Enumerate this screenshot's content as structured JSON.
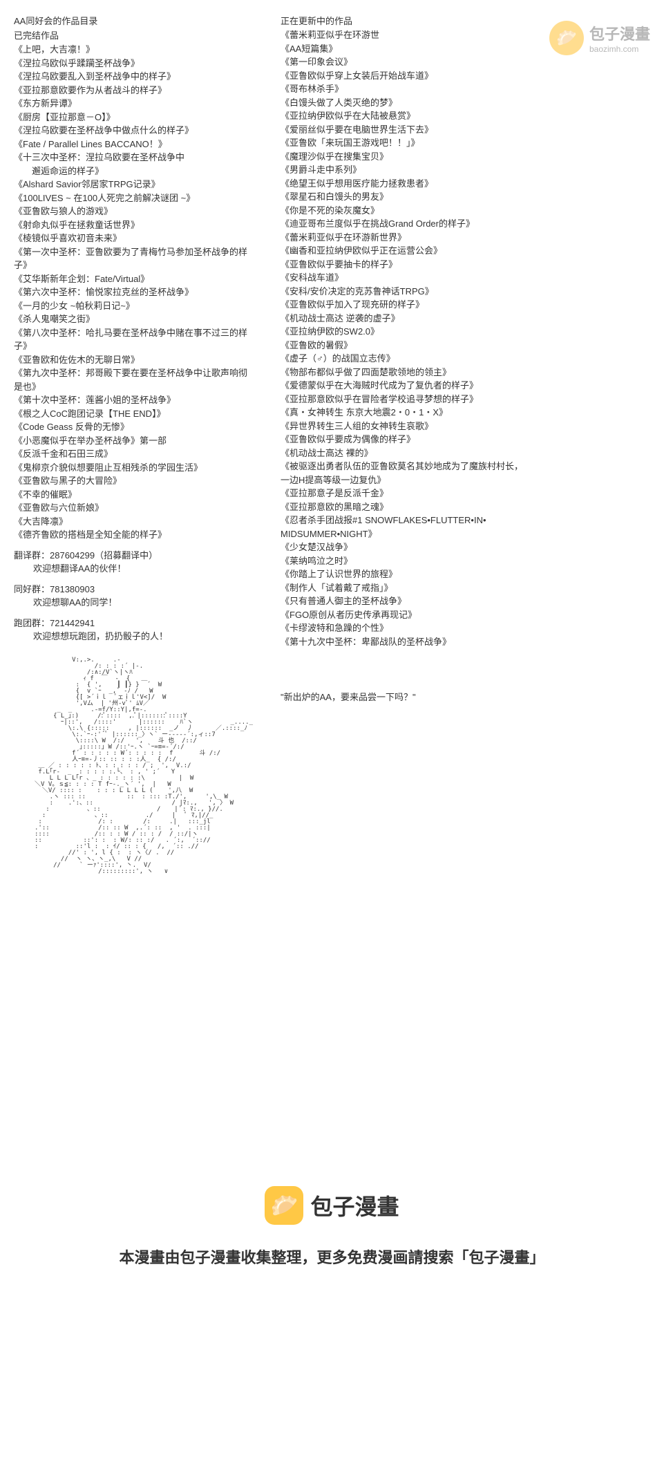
{
  "watermark": {
    "title": "包子漫畫",
    "url": "baozimh.com",
    "icon": "🥟"
  },
  "leftColumn": {
    "header": "AA同好会的作品目录",
    "completedTitle": "已完结作品",
    "completedWorks": [
      "《上吧，大吉凛！》",
      "《涅拉乌欧似乎蹂躏圣杯战争》",
      "《涅拉乌欧要乱入到圣杯战争中的样子》",
      "《亚拉那意欧要作为从者战斗的样子》",
      "《东方新异谭》",
      "《厨房【亚拉那意－O】》",
      "《涅拉乌欧要在圣杯战争中做点什么的样子》",
      "《Fate / Parallel Lines BACCANO！》",
      "《十三次中圣杯：涅拉乌欧要在圣杯战争中",
      "　　邂逅命运的样子》",
      "《Alshard Savior邻居家TRPG记录》",
      "《100LIVES ~ 在100人死完之前解决谜团 ~》",
      "《亚鲁欧与狼人的游戏》",
      "《射命丸似乎在拯救童话世界》",
      "《棱镜似乎喜欢初音未来》",
      "《第一次中圣杯：亚鲁欧要为了青梅竹马参加圣杯战争的样子》",
      "《艾华斯新年企划：Fate/Virtual》",
      "《第六次中圣杯：愉悦家拉克丝的圣杯战争》",
      "《一月的少女 ~帕秋莉日记~》",
      "《杀人鬼嘲笑之街》",
      "《第八次中圣杯：哈扎马要在圣杯战争中赌在事不过三的样子》",
      "《亚鲁欧和佐佐木的无聊日常》",
      "《第九次中圣杯：邦哥殿下要在要在圣杯战争中让歌声响彻是也》",
      "《第十次中圣杯：莲酱小姐的圣杯战争》",
      "《根之人CoC跑团记录【THE END】》",
      "《Code Geass 反骨的无惨》",
      "《小恶魔似乎在举办圣杯战争》第一部",
      "《反派千金和石田三成》",
      "《鬼柳京介貌似想要阻止互相残杀的学园生活》",
      "《亚鲁欧与黑子的大冒险》",
      "《不幸的催眠》",
      "《亚鲁欧与六位新娘》",
      "《大吉降凛》",
      "《德齐鲁欧的搭档是全知全能的样子》"
    ],
    "groups": [
      {
        "label": "翻译群：",
        "number": "287604299（招募翻译中）",
        "note": "欢迎想翻译AA的伙伴！"
      },
      {
        "label": "同好群：",
        "number": "781380903",
        "note": "欢迎想聊AA的同学！"
      },
      {
        "label": "跑团群：",
        "number": "721442941",
        "note": "欢迎想想玩跑团，扔扔骰子的人！"
      }
    ]
  },
  "rightColumn": {
    "updatingTitle": "正在更新中的作品",
    "updatingWorks": [
      "《蕾米莉亚似乎在环游世",
      "《AA短篇集》",
      "《第一印象会议》",
      "《亚鲁欧似乎穿上女装后开始战车道》",
      "《哥布林杀手》",
      "《白馒头做了人类灭绝的梦》",
      "《亚拉纳伊欧似乎在大陆被悬赏》",
      "《爱丽丝似乎要在电脑世界生活下去》",
      "《亚鲁欧「来玩国王游戏吧！！」》",
      "《魔理沙似乎在搜集宝贝》",
      "《男爵斗走中系列》",
      "《绝望王似乎想用医疗能力拯救患者》",
      "《翠星石和白馒头的男友》",
      "《你是不死的染灰魔女》",
      "《迪亚哥布兰度似乎在挑战Grand Order的样子》",
      "《蕾米莉亚似乎在环游新世界》",
      "《幽香和亚拉纳伊欧似乎正在运营公会》",
      "《亚鲁欧似乎要抽卡的样子》",
      "《安科战车道》",
      "《安科/安价决定的克苏鲁神话TRPG》",
      "《亚鲁欧似乎加入了现充研的样子》",
      "《机动战士高达 逆袭的虚子》",
      "《亚拉纳伊欧的SW2.0》",
      "《亚鲁欧的暑假》",
      "《虚子（♂）的战国立志传》",
      "《物部布都似乎做了四面楚歌领地的领主》",
      "《爱德蒙似乎在大海贼时代成为了复仇者的样子》",
      "《亚拉那意欧似乎在冒险者学校追寻梦想的样子》",
      "《真・女神转生 东京大地震2・0・1・X》",
      "《异世界转生三人组的女神转生哀歌》",
      "《亚鲁欧似乎要成为偶像的样子》",
      "《机动战士高达 裸的》",
      "《被驱逐出勇者队伍的亚鲁欧莫名其妙地成为了魔族村村长，",
      "一边H提高等级一边复仇》",
      "《亚拉那意子是反派千金》",
      "《亚拉那意欧的黑暗之魂》",
      "《忍者杀手团战报#1 SNOWFLAKES•FLUTTER•IN•",
      "MIDSUMMER•NIGHT》",
      "《少女楚汉战争》",
      "《莱纳鸣泣之时》",
      "《你踏上了认识世界的旅程》",
      "《制作人「试着戴了戒指」》",
      "《只有普通人御主的圣杯战争》",
      "《FGO原创从者历史传承再现记》",
      "《卡缪波特和急躁的个性》",
      "《第十九次中圣杯：卑鄙战队的圣杯战争》"
    ],
    "quote": "\"新出炉的AA，要来品尝一下吗？\""
  },
  "footer": {
    "icon": "🥟",
    "brand": "包子漫畫",
    "text": "本漫畫由包子漫畫收集整理，更多免费漫画請搜索「包子漫畫」"
  },
  "asciiArt": "          V:,.>.     .-\n                /: : : :´ |-.\n              /:∧:/V`ヽ|ヽﾊ\n             ｨ f  ￣  -  {   ＿\n           :  { ',    ┃ ┃} }  ´  W\n           {  v `ｰ  _,` -ﾉ /   W\n           {[ >´ｉｌ  ﾟェｉｌ'V<]/  W\n           ',Vム  | '州-vﾟ' ﾑV／\n      _  _     .-=f/Y::Y|,f=-.\n     { L_｣:)     /:ﾟ::::  ,.ﾟ|:::::::ﾟ::::Y\n       ｰ|::',   /::::'      |::::::    ﾊ`ヽ          _...._\n         \\:.\\ {:::::     , |::::::  _ノ  丿      ／.::::_ﾉ\n          \\:.`ｰ-:'´ﾟ |::::::_〉ヽ` ー-----´:,ィ::7\n           \\::::\\ W  /:/   ',    斗 也  /::/\n            ｣:::::｣ W /::'ｰ.ヽ `ｰ=≡=-´/:/\n          f´ : : : : : W´: : : : :  f       斗 /:/\n          人ｰ≡=-丿:: :: : : :人_  { /:/\n ＿ ／ : : : : : ﾄ、: : : : : / ;  ',  V.:/\n f.L｢r-  _  : : : : :.└、 : , ' ;´   Y\n    L L L L｢r 、_ : : : : : :\\         |  W\n＼V V。ｓ≦: : : : T fｰ-._ヽ´ ',  |   W\n  ＼V/ :::: :    : : : L L L L (    ',八  W\n    .ヽ ::: ::           ::  : ::: :T./',     ',\\_ W\n    :    .':、::                     / |ﾏ:.,   ', 〉 W\n   :          、::               /　  | ﾟ: ﾏ:., }//.\n  :             、::          ./     |   ﾟ ﾏ,|//_\n :               /: :        /:     .|   :::_jl\n.'::             /:: :: W  ,.´: ::  , '  . :::|\n::::            /:: : : W / :: : /  / ::/|ヽ\n::           ::': :  : W/: :: :/   . ´:,  ´:://\n:          ::'l :  : ｲ/ :: : {   /,  ´:: .//\n         //' : ', l { :  : ヽ〈/ .  //\n       //  ヽ ヽ、ヽ_,\\   V //\n     //     ` ーｧ'::::', 丶.  V/\n                 /:::::::::', ヽ   ∨"
}
